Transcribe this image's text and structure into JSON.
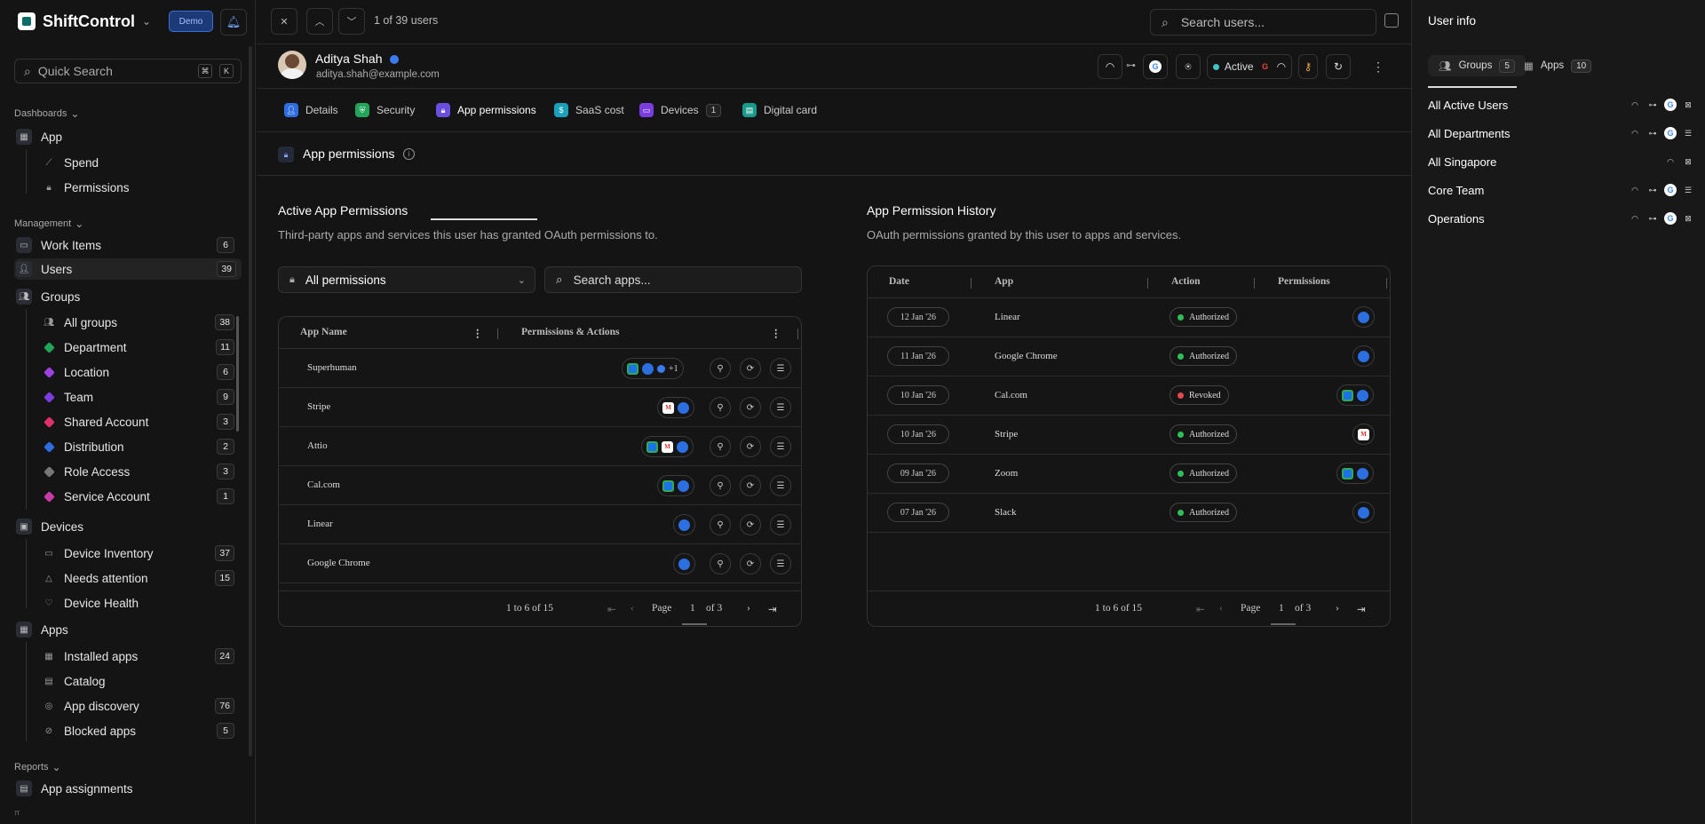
{
  "brand": {
    "name": "ShiftControl",
    "badge": "Demo"
  },
  "sidebar": {
    "quick_search": "Quick Search",
    "kbd": [
      "⌘",
      "K"
    ],
    "sections": {
      "dashboards": "Dashboards",
      "management": "Management",
      "reports": "Reports"
    },
    "app": {
      "label": "App",
      "children": [
        "Spend",
        "Permissions"
      ]
    },
    "work_items": {
      "label": "Work Items",
      "count": "6"
    },
    "users": {
      "label": "Users",
      "count": "39"
    },
    "groups": {
      "label": "Groups",
      "children": [
        {
          "label": "All groups",
          "count": "38"
        },
        {
          "label": "Department",
          "count": "11",
          "color": "#22a55a"
        },
        {
          "label": "Location",
          "count": "6",
          "color": "#a040e0"
        },
        {
          "label": "Team",
          "count": "9",
          "color": "#7a3ee0"
        },
        {
          "label": "Shared Account",
          "count": "3",
          "color": "#e0306a"
        },
        {
          "label": "Distribution",
          "count": "2",
          "color": "#2f6ce0"
        },
        {
          "label": "Role Access",
          "count": "3",
          "color": "#777777"
        },
        {
          "label": "Service Account",
          "count": "1",
          "color": "#c83aa8"
        }
      ]
    },
    "devices": {
      "label": "Devices",
      "children": [
        {
          "label": "Device Inventory",
          "count": "37"
        },
        {
          "label": "Needs attention",
          "count": "15"
        },
        {
          "label": "Device Health",
          "count": ""
        }
      ]
    },
    "apps": {
      "label": "Apps",
      "children": [
        {
          "label": "Installed apps",
          "count": "24"
        },
        {
          "label": "Catalog",
          "count": ""
        },
        {
          "label": "App discovery",
          "count": "76"
        },
        {
          "label": "Blocked apps",
          "count": "5"
        }
      ]
    },
    "app_assignments": "App assignments",
    "hint": "π"
  },
  "topbar": {
    "counter": "1 of 39 users",
    "search_placeholder": "Search users..."
  },
  "user": {
    "name": "Aditya Shah",
    "email": "aditya.shah@example.com",
    "status": "Active"
  },
  "tabs": [
    {
      "label": "Details",
      "color": "#2f6ce0"
    },
    {
      "label": "Security",
      "color": "#22a55a"
    },
    {
      "label": "App permissions",
      "color": "#6a4ee0"
    },
    {
      "label": "SaaS cost",
      "color": "#1aa0b8"
    },
    {
      "label": "Devices",
      "color": "#7a3ee0",
      "count": "1"
    },
    {
      "label": "Digital card",
      "color": "#1a9a8a"
    }
  ],
  "page": {
    "title": "App permissions"
  },
  "active": {
    "title": "Active App Permissions",
    "desc": "Third-party apps and services this user has granted OAuth permissions to.",
    "filter": "All permissions",
    "search_placeholder": "Search apps...",
    "columns": [
      "App Name",
      "Permissions & Actions"
    ],
    "rows": [
      "Superhuman",
      "Stripe",
      "Attio",
      "Cal.com",
      "Linear",
      "Google Chrome"
    ],
    "more": "+1",
    "range": "1 to 6 of 15",
    "page_label": "Page",
    "page": "1",
    "of": "of 3"
  },
  "history": {
    "title": "App Permission History",
    "desc": "OAuth permissions granted by this user to apps and services.",
    "columns": [
      "Date",
      "App",
      "Action",
      "Permissions"
    ],
    "rows": [
      {
        "date": "12 Jan '26",
        "app": "Linear",
        "action": "Authorized"
      },
      {
        "date": "11 Jan '26",
        "app": "Google Chrome",
        "action": "Authorized"
      },
      {
        "date": "10 Jan '26",
        "app": "Cal.com",
        "action": "Revoked"
      },
      {
        "date": "10 Jan '26",
        "app": "Stripe",
        "action": "Authorized"
      },
      {
        "date": "09 Jan '26",
        "app": "Zoom",
        "action": "Authorized"
      },
      {
        "date": "07 Jan '26",
        "app": "Slack",
        "action": "Authorized"
      }
    ],
    "range": "1 to 6 of 15",
    "page_label": "Page",
    "page": "1",
    "of": "of 3"
  },
  "right_panel": {
    "title": "User info",
    "tabs": [
      {
        "label": "Groups",
        "count": "5"
      },
      {
        "label": "Apps",
        "count": "10"
      }
    ],
    "groups": [
      "All Active Users",
      "All Departments",
      "All Singapore",
      "Core Team",
      "Operations"
    ]
  },
  "colors": {
    "authorized": "#2fbf5a",
    "revoked": "#e5484d",
    "accent": "#3a7cf0"
  }
}
